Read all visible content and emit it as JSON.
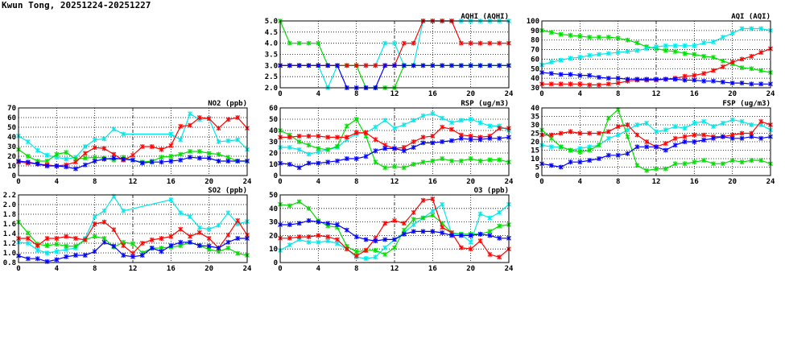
{
  "title": "Kwun Tong, 20251224-20251227",
  "colors": {
    "day1": "#ff0000",
    "day2": "#00dd00",
    "day3": "#00e8e8",
    "day4": "#0000ff"
  },
  "chart_data": [
    {
      "id": "aqhi",
      "type": "line",
      "title": "AQHI (AQHI)",
      "xlim": [
        0,
        24
      ],
      "xticks": [
        0,
        4,
        8,
        12,
        16,
        20,
        24
      ],
      "ylim": [
        2,
        5
      ],
      "yticks": [
        2.0,
        2.5,
        3.0,
        3.5,
        4.0,
        4.5,
        5.0
      ],
      "ydec": 1,
      "grid": true,
      "series": [
        {
          "name": "cyan",
          "color": "#00e8e8",
          "values": [
            3,
            3,
            3,
            3,
            3,
            2,
            3,
            3,
            3,
            3,
            3,
            4,
            4,
            3,
            3,
            5,
            5,
            5,
            5,
            5,
            5,
            5,
            5,
            5,
            5
          ]
        },
        {
          "name": "green",
          "color": "#00dd00",
          "values": [
            5,
            4,
            4,
            4,
            4,
            3,
            3,
            3,
            3,
            2,
            2,
            2,
            2,
            3,
            3,
            3,
            3,
            3,
            3,
            3,
            3,
            3,
            3,
            3,
            3
          ]
        },
        {
          "name": "red",
          "color": "#ff0000",
          "values": [
            3,
            3,
            3,
            3,
            3,
            3,
            3,
            3,
            3,
            3,
            3,
            3,
            3,
            4,
            4,
            5,
            5,
            5,
            5,
            4,
            4,
            4,
            4,
            4,
            4
          ]
        },
        {
          "name": "blue",
          "color": "#0000ff",
          "values": [
            3,
            3,
            3,
            3,
            3,
            3,
            3,
            2,
            2,
            2,
            2,
            3,
            3,
            3,
            3,
            3,
            3,
            3,
            3,
            3,
            3,
            3,
            3,
            3,
            3
          ]
        }
      ]
    },
    {
      "id": "aqi",
      "type": "line",
      "title": "AQI (AQI)",
      "xlim": [
        0,
        24
      ],
      "xticks": [
        0,
        4,
        8,
        12,
        16,
        20,
        24
      ],
      "ylim": [
        30,
        100
      ],
      "yticks": [
        30,
        40,
        50,
        60,
        70,
        80,
        90,
        100
      ],
      "ydec": 0,
      "grid": true,
      "series": [
        {
          "name": "green",
          "color": "#00dd00",
          "values": [
            90,
            88,
            86,
            85,
            84,
            83,
            83,
            83,
            82,
            80,
            77,
            73,
            71,
            69,
            68,
            66,
            65,
            63,
            62,
            58,
            55,
            51,
            50,
            48,
            46
          ]
        },
        {
          "name": "cyan",
          "color": "#00e8e8",
          "values": [
            54,
            57,
            59,
            61,
            62,
            64,
            65,
            66,
            67,
            68,
            69,
            71,
            73,
            74,
            74,
            74,
            74,
            77,
            78,
            83,
            87,
            92,
            92,
            92,
            90
          ]
        },
        {
          "name": "red",
          "color": "#ff0000",
          "values": [
            34,
            34,
            34,
            34,
            34,
            33,
            33,
            34,
            35,
            37,
            38,
            38,
            38,
            39,
            40,
            42,
            43,
            45,
            48,
            52,
            57,
            60,
            63,
            67,
            71
          ]
        },
        {
          "name": "blue",
          "color": "#0000ff",
          "values": [
            46,
            45,
            44,
            44,
            43,
            43,
            41,
            40,
            40,
            39,
            39,
            39,
            39,
            39,
            39,
            38,
            38,
            37,
            37,
            36,
            35,
            35,
            34,
            34,
            34
          ]
        }
      ]
    },
    {
      "id": "no2",
      "type": "line",
      "title": "NO2 (ppb)",
      "xlim": [
        0,
        24
      ],
      "xticks": [
        0,
        4,
        8,
        12,
        16,
        20,
        24
      ],
      "ylim": [
        0,
        70
      ],
      "yticks": [
        0,
        10,
        20,
        30,
        40,
        50,
        60,
        70
      ],
      "ydec": 0,
      "grid": true,
      "series": [
        {
          "name": "cyan",
          "color": "#00e8e8",
          "values": [
            41,
            35,
            26,
            21,
            19,
            17,
            19,
            30,
            37,
            38,
            48,
            43,
            null,
            null,
            null,
            null,
            43,
            37,
            64,
            58,
            59,
            35,
            36,
            37,
            27
          ]
        },
        {
          "name": "green",
          "color": "#00dd00",
          "values": [
            27,
            20,
            15,
            15,
            22,
            24,
            17,
            18,
            19,
            18,
            16,
            19,
            16,
            14,
            15,
            19,
            20,
            22,
            25,
            25,
            23,
            22,
            19,
            15,
            15
          ]
        },
        {
          "name": "red",
          "color": "#ff0000",
          "values": [
            14,
            13,
            12,
            11,
            10,
            11,
            14,
            23,
            29,
            28,
            22,
            16,
            21,
            30,
            30,
            27,
            31,
            51,
            52,
            60,
            59,
            49,
            58,
            60,
            49
          ]
        },
        {
          "name": "blue",
          "color": "#0000ff",
          "values": [
            15,
            14,
            12,
            10,
            10,
            9,
            7,
            11,
            15,
            17,
            18,
            17,
            16,
            13,
            14,
            14,
            15,
            16,
            19,
            18,
            18,
            15,
            15,
            15,
            15
          ]
        }
      ]
    },
    {
      "id": "rsp",
      "type": "line",
      "title": "RSP (ug/m3)",
      "xlim": [
        0,
        24
      ],
      "xticks": [
        0,
        4,
        8,
        12,
        16,
        20,
        24
      ],
      "ylim": [
        0,
        60
      ],
      "yticks": [
        0,
        10,
        20,
        30,
        40,
        50,
        60
      ],
      "ydec": 0,
      "grid": true,
      "series": [
        {
          "name": "cyan",
          "color": "#00e8e8",
          "values": [
            25,
            25,
            23,
            19,
            21,
            23,
            25,
            32,
            37,
            38,
            43,
            49,
            42,
            45,
            49,
            53,
            55,
            51,
            47,
            49,
            50,
            47,
            44,
            44,
            40
          ]
        },
        {
          "name": "green",
          "color": "#00dd00",
          "values": [
            40,
            36,
            30,
            27,
            24,
            23,
            26,
            44,
            50,
            35,
            12,
            7,
            8,
            7,
            10,
            12,
            13,
            15,
            13,
            13,
            15,
            13,
            14,
            14,
            12
          ]
        },
        {
          "name": "red",
          "color": "#ff0000",
          "values": [
            34,
            34,
            35,
            35,
            35,
            34,
            34,
            34,
            38,
            38,
            32,
            27,
            24,
            25,
            30,
            34,
            35,
            43,
            41,
            36,
            35,
            34,
            35,
            42,
            42
          ]
        },
        {
          "name": "blue",
          "color": "#0000ff",
          "values": [
            11,
            10,
            7,
            11,
            11,
            12,
            13,
            15,
            15,
            17,
            22,
            24,
            24,
            22,
            25,
            29,
            29,
            30,
            31,
            33,
            32,
            32,
            33,
            33,
            34
          ]
        }
      ]
    },
    {
      "id": "fsp",
      "type": "line",
      "title": "FSP (ug/m3)",
      "xlim": [
        0,
        24
      ],
      "xticks": [
        0,
        4,
        8,
        12,
        16,
        20,
        24
      ],
      "ylim": [
        0,
        40
      ],
      "yticks": [
        0,
        5,
        10,
        15,
        20,
        25,
        30,
        35,
        40
      ],
      "ydec": 0,
      "grid": true,
      "series": [
        {
          "name": "cyan",
          "color": "#00e8e8",
          "values": [
            18,
            17,
            17,
            15,
            16,
            17,
            18,
            22,
            24,
            27,
            30,
            31,
            26,
            27,
            29,
            28,
            31,
            32,
            29,
            31,
            33,
            32,
            30,
            30,
            27
          ]
        },
        {
          "name": "green",
          "color": "#00dd00",
          "values": [
            27,
            22,
            17,
            15,
            14,
            15,
            18,
            34,
            39,
            23,
            6,
            3,
            4,
            4,
            7,
            7,
            8,
            9,
            7,
            7,
            9,
            8,
            9,
            9,
            7
          ]
        },
        {
          "name": "red",
          "color": "#ff0000",
          "values": [
            24,
            24,
            25,
            26,
            25,
            25,
            25,
            26,
            29,
            30,
            24,
            20,
            17,
            19,
            22,
            23,
            24,
            24,
            23,
            23,
            24,
            25,
            25,
            32,
            30
          ]
        },
        {
          "name": "blue",
          "color": "#0000ff",
          "values": [
            7,
            6,
            5,
            8,
            8,
            9,
            10,
            12,
            12,
            13,
            17,
            17,
            17,
            15,
            18,
            20,
            20,
            21,
            22,
            23,
            22,
            22,
            23,
            22,
            23
          ]
        }
      ]
    },
    {
      "id": "so2",
      "type": "line",
      "title": "SO2 (ppb)",
      "xlim": [
        0,
        24
      ],
      "xticks": [
        0,
        4,
        8,
        12,
        16,
        20,
        24
      ],
      "ylim": [
        0.8,
        2.2
      ],
      "yticks": [
        0.8,
        1.0,
        1.2,
        1.4,
        1.6,
        1.8,
        2.0,
        2.2
      ],
      "ydec": 1,
      "grid": true,
      "series": [
        {
          "name": "cyan",
          "color": "#00e8e8",
          "values": [
            1.22,
            1.2,
            1.06,
            1.0,
            1.03,
            1.07,
            1.1,
            1.3,
            1.75,
            1.87,
            2.17,
            1.87,
            null,
            null,
            null,
            null,
            2.1,
            1.83,
            1.75,
            1.52,
            1.49,
            1.57,
            1.83,
            1.6,
            1.65
          ]
        },
        {
          "name": "green",
          "color": "#00dd00",
          "values": [
            1.64,
            1.41,
            1.18,
            1.15,
            1.18,
            1.14,
            1.14,
            1.27,
            1.34,
            1.3,
            1.12,
            1.22,
            1.19,
            1.0,
            1.1,
            1.1,
            1.12,
            1.15,
            1.22,
            1.15,
            1.07,
            1.03,
            1.1,
            0.99,
            0.95
          ]
        },
        {
          "name": "red",
          "color": "#ff0000",
          "values": [
            1.3,
            1.3,
            1.15,
            1.3,
            1.3,
            1.34,
            1.3,
            1.27,
            1.6,
            1.64,
            1.48,
            1.15,
            0.99,
            1.2,
            1.27,
            1.3,
            1.34,
            1.49,
            1.34,
            1.42,
            1.3,
            1.1,
            1.37,
            1.67,
            1.37
          ]
        },
        {
          "name": "blue",
          "color": "#0000ff",
          "values": [
            0.94,
            0.88,
            0.88,
            0.82,
            0.86,
            0.92,
            0.95,
            0.95,
            1.03,
            1.22,
            1.14,
            0.95,
            0.92,
            0.95,
            1.1,
            1.03,
            1.15,
            1.22,
            1.22,
            1.15,
            1.14,
            1.1,
            1.22,
            1.3,
            1.3
          ]
        }
      ]
    },
    {
      "id": "o3",
      "type": "line",
      "title": "O3 (ppb)",
      "xlim": [
        0,
        24
      ],
      "xticks": [
        0,
        4,
        8,
        12,
        16,
        20,
        24
      ],
      "ylim": [
        0,
        50
      ],
      "yticks": [
        0,
        10,
        20,
        30,
        40,
        50
      ],
      "ydec": 0,
      "grid": true,
      "series": [
        {
          "name": "cyan",
          "color": "#00e8e8",
          "values": [
            9,
            13,
            17,
            15,
            15,
            16,
            14,
            10,
            4,
            3,
            4,
            11,
            17,
            22,
            28,
            33,
            38,
            43,
            21,
            21,
            15,
            36,
            33,
            37,
            43
          ]
        },
        {
          "name": "green",
          "color": "#00dd00",
          "values": [
            43,
            42,
            45,
            40,
            31,
            27,
            26,
            12,
            8,
            9,
            9,
            6,
            11,
            24,
            32,
            33,
            35,
            29,
            22,
            21,
            21,
            21,
            23,
            27,
            28
          ]
        },
        {
          "name": "red",
          "color": "#ff0000",
          "values": [
            18,
            18,
            19,
            19,
            20,
            19,
            17,
            10,
            5,
            9,
            18,
            29,
            31,
            29,
            37,
            46,
            47,
            26,
            22,
            11,
            10,
            16,
            6,
            4,
            10
          ]
        },
        {
          "name": "blue",
          "color": "#0000ff",
          "values": [
            28,
            28,
            29,
            31,
            30,
            29,
            28,
            24,
            19,
            17,
            16,
            17,
            17,
            21,
            23,
            23,
            23,
            22,
            20,
            20,
            20,
            21,
            20,
            18,
            18
          ]
        }
      ]
    }
  ]
}
